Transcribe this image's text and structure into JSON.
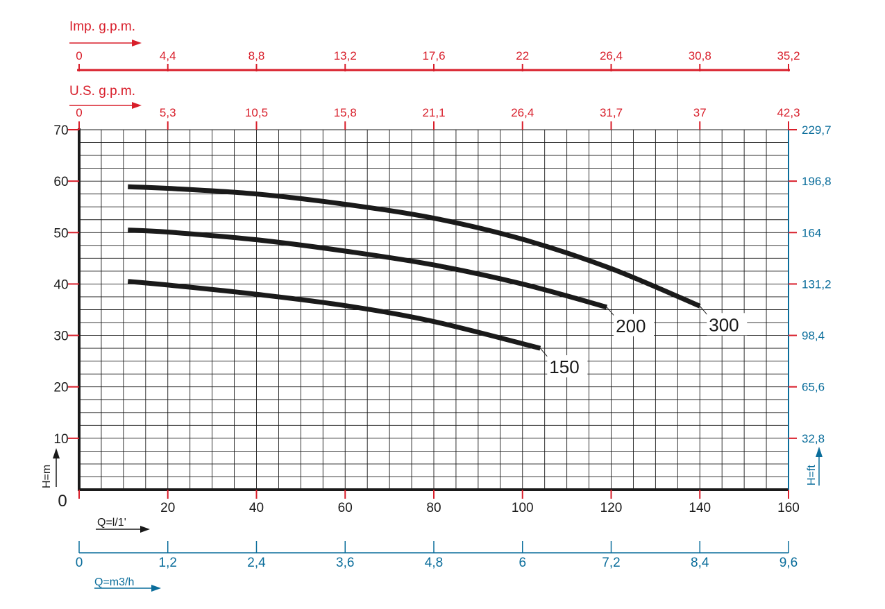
{
  "colors": {
    "red": "#d81e2a",
    "blue": "#0a6d9b",
    "black": "#1a1a1a",
    "curve": "#1a1a1a",
    "grid": "#1a1a1a"
  },
  "chart_data": {
    "type": "line",
    "title": "",
    "xlabel": "Q=l/1'",
    "ylabel": "H=m",
    "xlim": [
      0,
      160
    ],
    "ylim": [
      0,
      70
    ],
    "grid": true,
    "legend": "none",
    "x_ticks": [
      "20",
      "40",
      "60",
      "80",
      "100",
      "120",
      "140",
      "160"
    ],
    "y_ticks": [
      "0",
      "10",
      "20",
      "30",
      "40",
      "50",
      "60",
      "70"
    ],
    "right_axis": {
      "label": "H=ft",
      "ticks": [
        "32,8",
        "65,6",
        "98,4",
        "131,2",
        "164",
        "196,8",
        "229,7"
      ]
    },
    "top_axis_imp": {
      "label": "Imp. g.p.m.",
      "ticks": [
        "0",
        "4,4",
        "8,8",
        "13,2",
        "17,6",
        "22",
        "26,4",
        "30,8",
        "35,2"
      ]
    },
    "top_axis_us": {
      "label": "U.S.  g.p.m.",
      "ticks": [
        "0",
        "5,3",
        "10,5",
        "15,8",
        "21,1",
        "26,4",
        "31,7",
        "37",
        "42,3"
      ]
    },
    "bottom_axis_m3h": {
      "label": "Q=m3/h",
      "ticks": [
        "0",
        "1,2",
        "2,4",
        "3,6",
        "4,8",
        "6",
        "7,2",
        "8,4",
        "9,6"
      ]
    },
    "series": [
      {
        "name": "300",
        "x": [
          11,
          20,
          40,
          60,
          80,
          100,
          120,
          140
        ],
        "y": [
          58.9,
          58.6,
          57.5,
          55.5,
          52.8,
          48.7,
          43.0,
          35.7
        ]
      },
      {
        "name": "200",
        "x": [
          11,
          20,
          40,
          60,
          80,
          100,
          119
        ],
        "y": [
          50.5,
          50.1,
          48.6,
          46.4,
          43.7,
          40.0,
          35.5
        ]
      },
      {
        "name": "150",
        "x": [
          11,
          20,
          40,
          60,
          80,
          104
        ],
        "y": [
          40.5,
          39.8,
          38.0,
          35.8,
          32.7,
          27.5
        ]
      }
    ]
  }
}
